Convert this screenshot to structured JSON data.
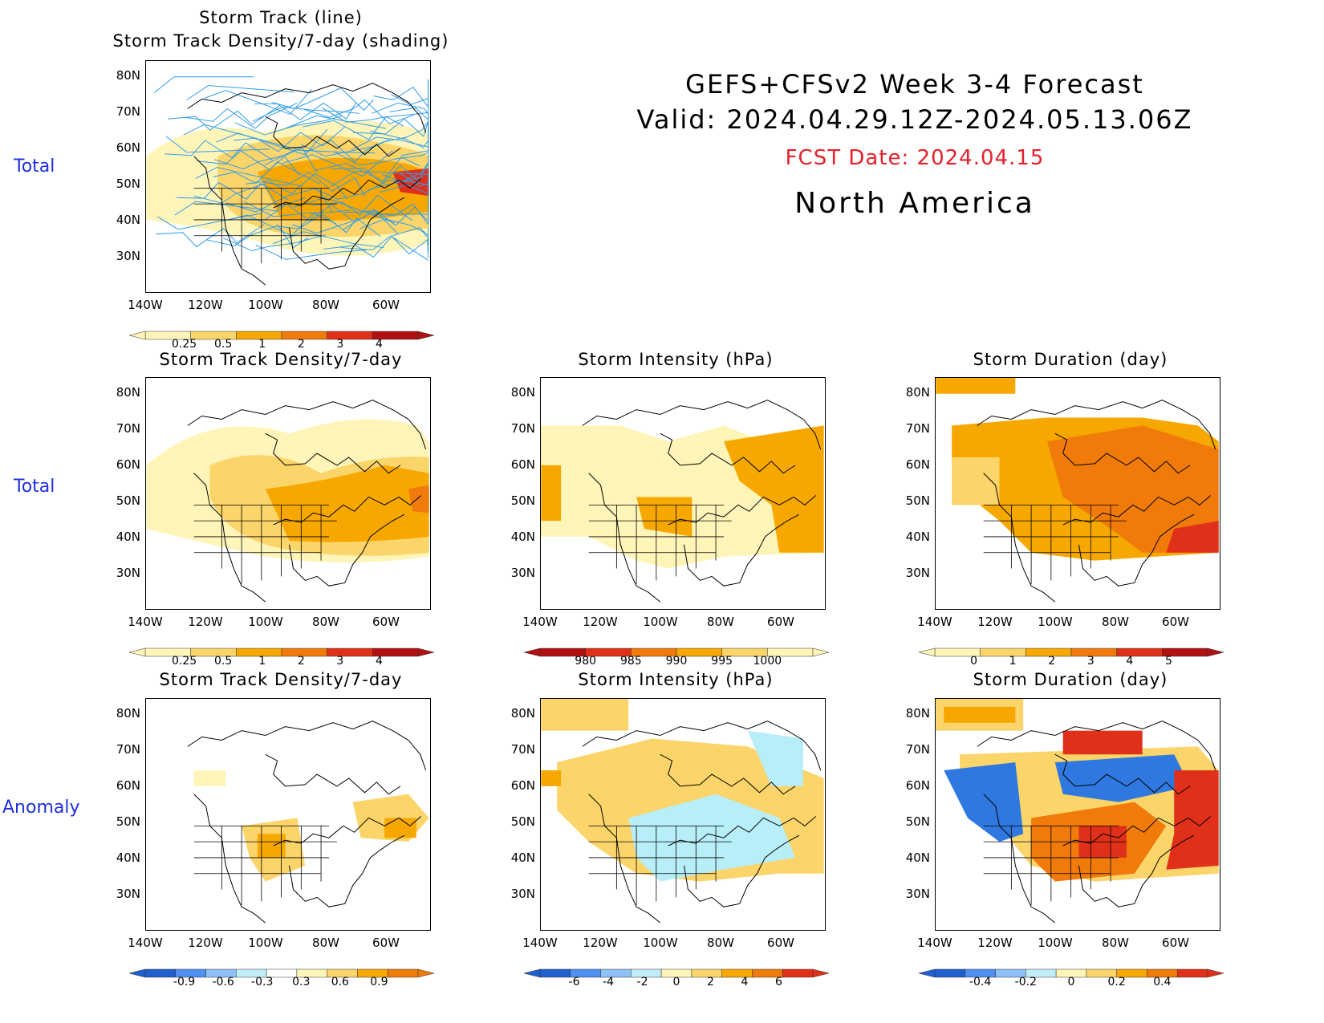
{
  "header": {
    "title_line1": "GEFS+CFSv2 Week 3-4 Forecast",
    "title_line2": "Valid: 2024.04.29.12Z-2024.05.13.06Z",
    "fcst_date": "FCST Date: 2024.04.15",
    "region": "North America"
  },
  "row_labels": [
    "Total",
    "Total",
    "Anomaly"
  ],
  "axes": {
    "lat_labels": [
      "80N",
      "70N",
      "60N",
      "50N",
      "40N",
      "30N"
    ],
    "lon_labels": [
      "140W",
      "120W",
      "100W",
      "80W",
      "60W"
    ]
  },
  "panels": [
    {
      "title1": "Storm Track (line)",
      "title2": "Storm Track Density/7-day (shading)",
      "colorbar": {
        "labels": [
          "0.25",
          "0.5",
          "1",
          "2",
          "3",
          "4"
        ],
        "colors": [
          "#fff5b8",
          "#fbd46a",
          "#f7a800",
          "#f07a0a",
          "#e0301a",
          "#b01010"
        ]
      }
    },
    {
      "title1": "Storm Track Density/7-day",
      "colorbar": {
        "labels": [
          "0.25",
          "0.5",
          "1",
          "2",
          "3",
          "4"
        ],
        "colors": [
          "#fff5b8",
          "#fbd46a",
          "#f7a800",
          "#f07a0a",
          "#e0301a",
          "#b01010"
        ]
      }
    },
    {
      "title1": "Storm Intensity (hPa)",
      "colorbar": {
        "labels": [
          "980",
          "985",
          "990",
          "995",
          "1000"
        ],
        "colors": [
          "#b01010",
          "#e0301a",
          "#f07a0a",
          "#f7a800",
          "#fbd46a",
          "#fff5b8"
        ]
      }
    },
    {
      "title1": "Storm Duration (day)",
      "colorbar": {
        "labels": [
          "0",
          "1",
          "2",
          "3",
          "4",
          "5"
        ],
        "colors": [
          "#fff5b8",
          "#fbd46a",
          "#f7a800",
          "#f07a0a",
          "#e0301a",
          "#b01010"
        ]
      }
    },
    {
      "title1": "Storm Track Density/7-day",
      "colorbar": {
        "labels": [
          "-0.9",
          "-0.6",
          "-0.3",
          "0.3",
          "0.6",
          "0.9"
        ],
        "colors": [
          "#1f5fd0",
          "#4f8ff0",
          "#8fc0f8",
          "#c0eef8",
          "#ffffff",
          "#fff5b8",
          "#fbd46a",
          "#f7a800",
          "#f07a0a"
        ]
      }
    },
    {
      "title1": "Storm Intensity (hPa)",
      "colorbar": {
        "labels": [
          "-6",
          "-4",
          "-2",
          "0",
          "2",
          "4",
          "6"
        ],
        "colors": [
          "#1f5fd0",
          "#4f8ff0",
          "#8fc0f8",
          "#c0eef8",
          "#fff5b8",
          "#fbd46a",
          "#f7a800",
          "#f07a0a",
          "#e0301a"
        ]
      }
    },
    {
      "title1": "Storm Duration (day)",
      "colorbar": {
        "labels": [
          "-0.4",
          "-0.2",
          "0",
          "0.2",
          "0.4"
        ],
        "colors": [
          "#1f5fd0",
          "#4f8ff0",
          "#8fc0f8",
          "#c0eef8",
          "#fff5b8",
          "#fbd46a",
          "#f7a800",
          "#f07a0a",
          "#e0301a"
        ]
      }
    }
  ],
  "colors": {
    "row_label": "#1f2fe0",
    "fcst_date": "#e4202a",
    "track_line": "#2f9ce8",
    "cold_blue": "#2f78e0",
    "light_blue": "#b8eef8",
    "light_yellow": "#fff5b8",
    "yellow": "#fbd46a",
    "orange": "#f7a800",
    "dark_orange": "#f07a0a",
    "red": "#e0301a"
  }
}
